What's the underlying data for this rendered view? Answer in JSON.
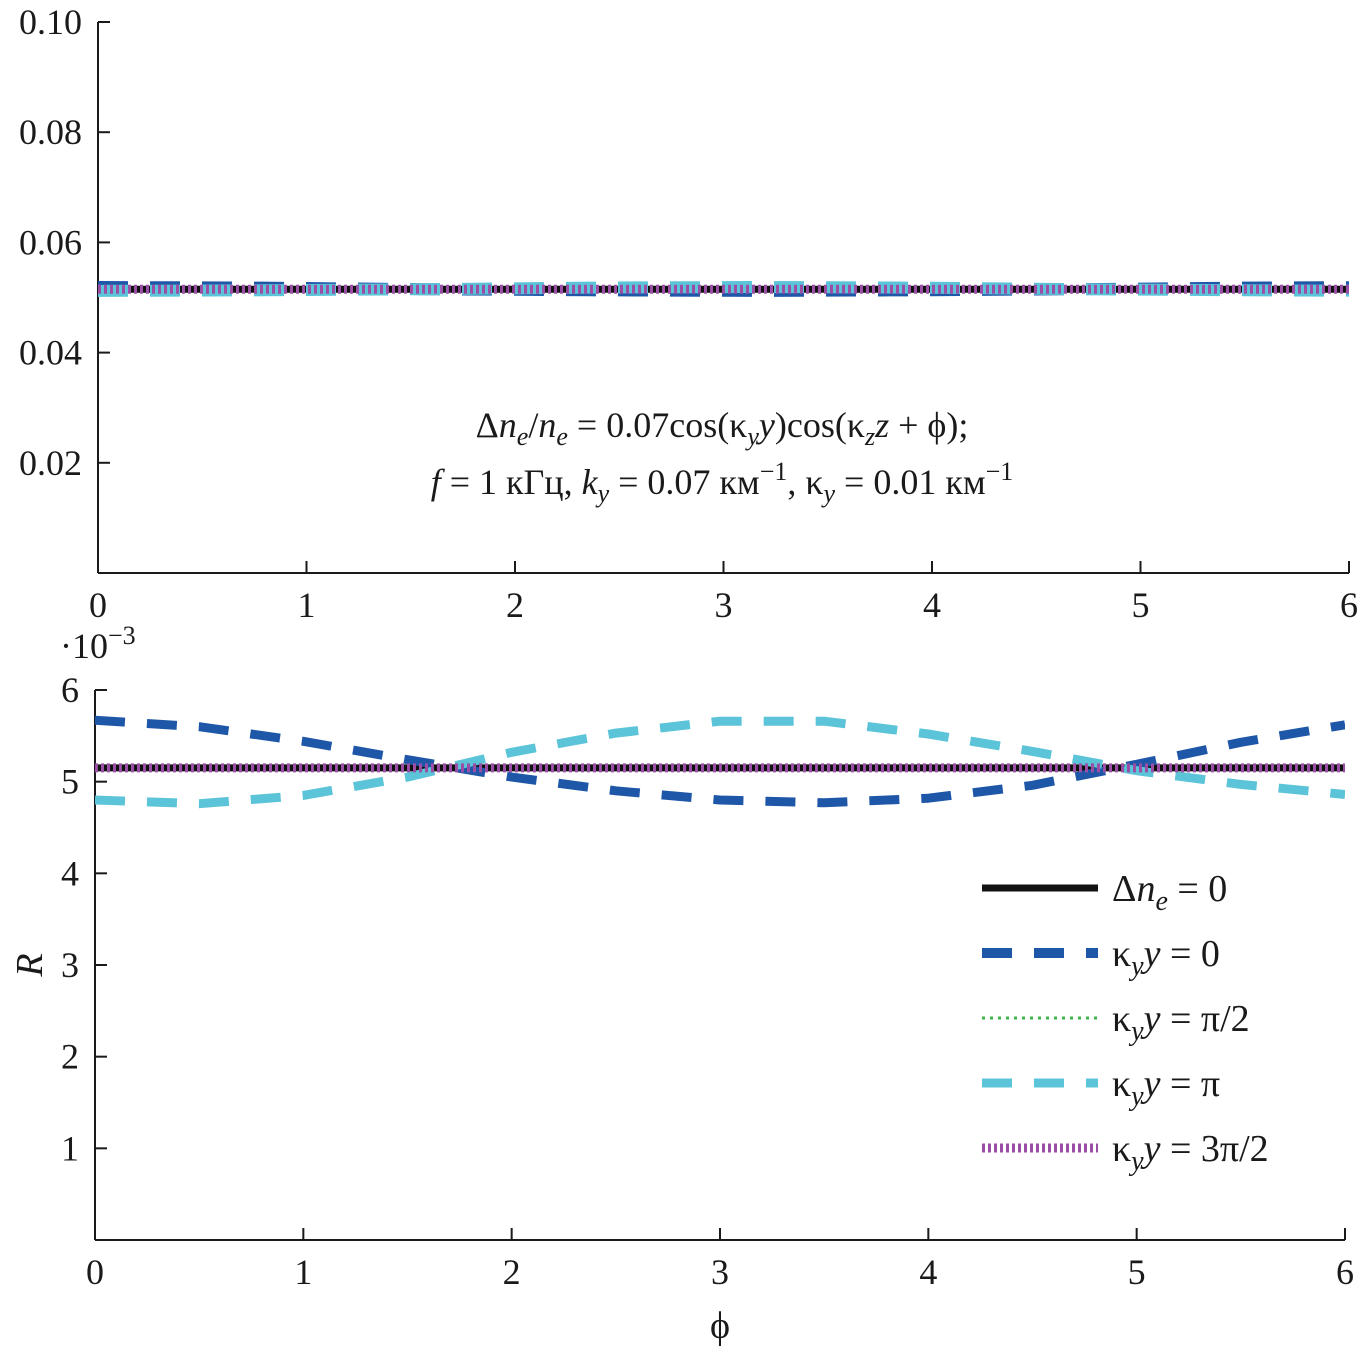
{
  "chart_data": [
    {
      "type": "line",
      "panel": "top",
      "xlim": [
        0,
        6
      ],
      "ylim": [
        0,
        0.1
      ],
      "xticks": [
        "0",
        "1",
        "2",
        "3",
        "4",
        "5",
        "6"
      ],
      "yticks": [
        "0.02",
        "0.04",
        "0.06",
        "0.08",
        "0.10"
      ],
      "xlabel": "",
      "ylabel": "",
      "annotation": {
        "line1": "Δn_e/n_e = 0.07cos(κ_y y)cos(κ_z z + ϕ);",
        "line2": "f = 1 кГц, k_y = 0.07 км⁻¹, κ_y = 0.01 км⁻¹"
      },
      "series": [
        {
          "name": "Δn_e = 0",
          "style": "solid",
          "color": "#111111",
          "x": [
            0,
            6.28
          ],
          "y": [
            0.0515,
            0.0515
          ]
        },
        {
          "name": "κ_y y = 0",
          "style": "dash",
          "color": "#1f57a8",
          "x": [
            0,
            0.785,
            1.571,
            2.356,
            3.142,
            3.927,
            4.712,
            5.498,
            6.283
          ],
          "y": [
            0.0519,
            0.0518,
            0.0515,
            0.0513,
            0.0512,
            0.0513,
            0.0515,
            0.0518,
            0.0519
          ]
        },
        {
          "name": "κ_y y = π/2",
          "style": "dot",
          "color": "#3db34a",
          "x": [
            0,
            6.28
          ],
          "y": [
            0.0515,
            0.0515
          ]
        },
        {
          "name": "κ_y y = π",
          "style": "dash",
          "color": "#5bc4d8",
          "x": [
            0,
            0.785,
            1.571,
            2.356,
            3.142,
            3.927,
            4.712,
            5.498,
            6.283
          ],
          "y": [
            0.0512,
            0.0513,
            0.0515,
            0.0518,
            0.0519,
            0.0518,
            0.0515,
            0.0513,
            0.0512
          ]
        },
        {
          "name": "κ_y y = 3π/2",
          "style": "dot",
          "color": "#9b4ea6",
          "x": [
            0,
            6.28
          ],
          "y": [
            0.0515,
            0.0515
          ]
        }
      ]
    },
    {
      "type": "line",
      "panel": "bottom",
      "xlim": [
        0,
        6
      ],
      "ylim": [
        0,
        6
      ],
      "xticks": [
        "0",
        "1",
        "2",
        "3",
        "4",
        "5",
        "6"
      ],
      "yticks": [
        "1",
        "2",
        "3",
        "4",
        "5",
        "6"
      ],
      "yscale_label": "·10⁻³",
      "xlabel": "ϕ",
      "ylabel": "R",
      "legend_position": "lower-right",
      "series": [
        {
          "name": "Δn_e = 0",
          "style": "solid",
          "color": "#111111",
          "x": [
            0,
            6
          ],
          "y": [
            5.15,
            5.15
          ]
        },
        {
          "name": "κ_y y = 0",
          "style": "dash",
          "color": "#1f57a8",
          "x": [
            0,
            0.5,
            1,
            1.5,
            2,
            2.5,
            3,
            3.5,
            4,
            4.5,
            5,
            5.5,
            6
          ],
          "y": [
            5.67,
            5.6,
            5.44,
            5.24,
            5.05,
            4.9,
            4.8,
            4.77,
            4.82,
            4.96,
            5.19,
            5.43,
            5.62
          ]
        },
        {
          "name": "κ_y y = π/2",
          "style": "dot",
          "color": "#3db34a",
          "x": [
            0,
            6
          ],
          "y": [
            5.15,
            5.15
          ]
        },
        {
          "name": "κ_y y = π",
          "style": "dash",
          "color": "#5bc4d8",
          "x": [
            0,
            0.5,
            1,
            1.5,
            2,
            2.5,
            3,
            3.5,
            4,
            4.5,
            5,
            5.5,
            6
          ],
          "y": [
            4.8,
            4.76,
            4.85,
            5.05,
            5.32,
            5.53,
            5.66,
            5.66,
            5.52,
            5.33,
            5.12,
            4.97,
            4.86
          ]
        },
        {
          "name": "κ_y y = 3π/2",
          "style": "dot",
          "color": "#9b4ea6",
          "x": [
            0,
            6
          ],
          "y": [
            5.15,
            5.15
          ]
        }
      ]
    }
  ]
}
